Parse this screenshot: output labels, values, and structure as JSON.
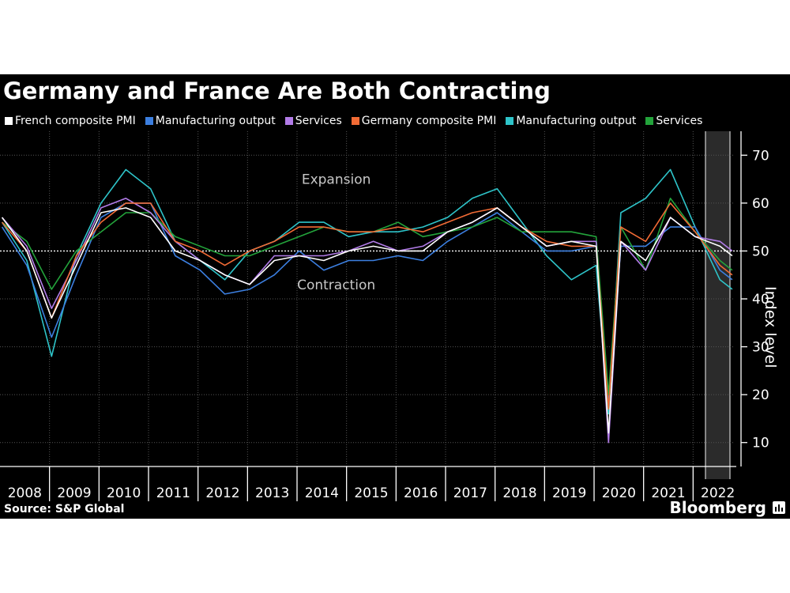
{
  "title": "Germany and France Are Both Contracting",
  "source": "Source: S&P Global",
  "brand": "Bloomberg",
  "colors": {
    "background": "#000000",
    "french_composite": "#ffffff",
    "french_manufacturing": "#3c7fe0",
    "french_services": "#b27ce8",
    "german_composite": "#f26b35",
    "german_manufacturing": "#2ec4c9",
    "german_services": "#23a33b",
    "shade": "#2b2b2b"
  },
  "chart_data": {
    "type": "line",
    "title": "Germany and France Are Both Contracting",
    "ylabel": "Index level",
    "xlabel": "",
    "ylim": [
      5,
      75
    ],
    "xlim": [
      "2008-01",
      "2022-12"
    ],
    "yticks": [
      10,
      20,
      30,
      40,
      50,
      60,
      70
    ],
    "x_tick_labels": [
      "2008",
      "2009",
      "2010",
      "2011",
      "2012",
      "2013",
      "2014",
      "2015",
      "2016",
      "2017",
      "2018",
      "2019",
      "2020",
      "2021",
      "2022"
    ],
    "reference_line": 50,
    "annotations": [
      {
        "text": "Expansion",
        "x": "2014-10",
        "y": 64
      },
      {
        "text": "Contraction",
        "x": "2014-10",
        "y": 42
      }
    ],
    "shaded_period": [
      "2022-04",
      "2022-12"
    ],
    "legend_placement": "top",
    "x": [
      "2008-01",
      "2008-07",
      "2009-01",
      "2009-07",
      "2010-01",
      "2010-07",
      "2011-01",
      "2011-07",
      "2012-01",
      "2012-07",
      "2013-01",
      "2013-07",
      "2014-01",
      "2014-07",
      "2015-01",
      "2015-07",
      "2016-01",
      "2016-07",
      "2017-01",
      "2017-07",
      "2018-01",
      "2018-07",
      "2019-01",
      "2019-07",
      "2020-01",
      "2020-04",
      "2020-07",
      "2021-01",
      "2021-07",
      "2022-01",
      "2022-07",
      "2022-10"
    ],
    "series": [
      {
        "name": "French composite PMI",
        "values": [
          57,
          50,
          36,
          47,
          58,
          59,
          57,
          50,
          48,
          45,
          43,
          48,
          49,
          48,
          50,
          51,
          50,
          50,
          54,
          56,
          59,
          55,
          51,
          52,
          51,
          12,
          52,
          48,
          57,
          53,
          51,
          49
        ]
      },
      {
        "name": "Manufacturing output",
        "values": [
          55,
          47,
          32,
          45,
          57,
          60,
          60,
          49,
          46,
          41,
          42,
          45,
          50,
          46,
          48,
          48,
          49,
          48,
          52,
          55,
          58,
          54,
          50,
          50,
          51,
          18,
          51,
          51,
          55,
          55,
          46,
          44
        ]
      },
      {
        "name": "Services",
        "values": [
          57,
          51,
          38,
          48,
          59,
          61,
          58,
          52,
          48,
          45,
          43,
          49,
          49,
          49,
          50,
          52,
          50,
          51,
          54,
          56,
          59,
          55,
          51,
          52,
          52,
          10,
          52,
          46,
          57,
          53,
          52,
          50
        ]
      },
      {
        "name": "Germany composite PMI",
        "values": [
          56,
          50,
          36,
          49,
          56,
          60,
          60,
          52,
          50,
          47,
          50,
          52,
          55,
          55,
          54,
          54,
          55,
          54,
          56,
          58,
          59,
          55,
          52,
          51,
          51,
          17,
          55,
          52,
          60,
          54,
          47,
          45
        ]
      },
      {
        "name": "Manufacturing output",
        "values": [
          56,
          48,
          28,
          49,
          60,
          67,
          63,
          52,
          48,
          44,
          50,
          52,
          56,
          56,
          53,
          54,
          54,
          55,
          57,
          61,
          63,
          56,
          49,
          44,
          47,
          16,
          58,
          61,
          67,
          55,
          44,
          42
        ]
      },
      {
        "name": "Services",
        "values": [
          56,
          52,
          42,
          50,
          54,
          58,
          58,
          53,
          51,
          49,
          49,
          51,
          53,
          55,
          54,
          54,
          56,
          53,
          54,
          55,
          57,
          54,
          54,
          54,
          53,
          20,
          55,
          46,
          61,
          54,
          48,
          46
        ]
      }
    ]
  }
}
